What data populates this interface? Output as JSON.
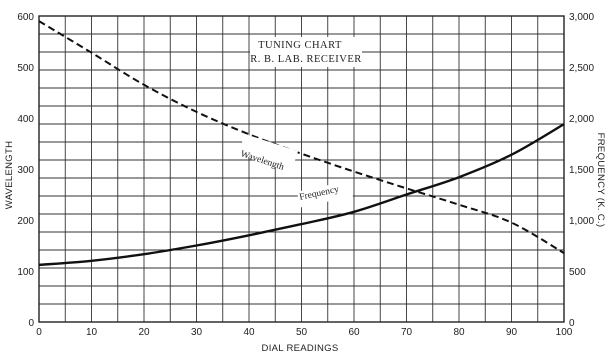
{
  "chart_data": {
    "type": "line",
    "title": "TUNING CHART",
    "subtitle": "R. B. LAB. RECEIVER",
    "xlabel": "DIAL READINGS",
    "ylabel_left": "WAVELENGTH",
    "ylabel_right": "FREQUENCY (K. C.)",
    "xlim": [
      0,
      100
    ],
    "ylim_left": [
      0,
      600
    ],
    "ylim_right": [
      0,
      3000
    ],
    "x_ticks": [
      "0",
      "10",
      "20",
      "30",
      "40",
      "50",
      "60",
      "70",
      "80",
      "90",
      "100"
    ],
    "y_left_ticks": [
      "0",
      "100",
      "200",
      "300",
      "400",
      "500",
      "600"
    ],
    "y_right_ticks": [
      "0",
      "500",
      "1,000",
      "1,500",
      "2,000",
      "2,500",
      "3,000"
    ],
    "grid": true,
    "series": [
      {
        "name": "Wavelength",
        "axis": "left",
        "style": "dashed",
        "x": [
          0,
          10,
          20,
          30,
          40,
          50,
          60,
          70,
          80,
          90,
          100
        ],
        "y": [
          590,
          528,
          465,
          412,
          368,
          330,
          295,
          262,
          230,
          195,
          135
        ]
      },
      {
        "name": "Frequency",
        "axis": "right",
        "style": "solid",
        "x": [
          0,
          10,
          20,
          30,
          40,
          50,
          60,
          70,
          80,
          90,
          100
        ],
        "y": [
          560,
          600,
          665,
          750,
          850,
          960,
          1080,
          1250,
          1420,
          1640,
          1940
        ]
      }
    ]
  }
}
